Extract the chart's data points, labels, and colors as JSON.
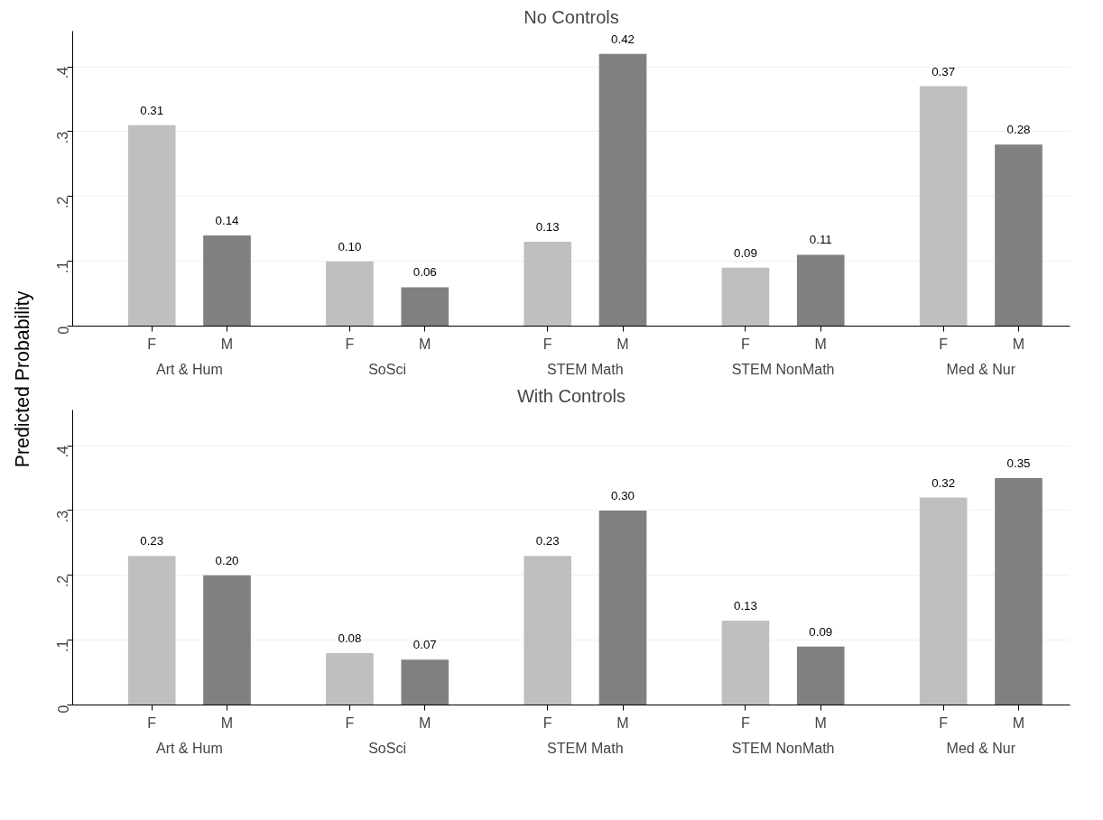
{
  "chart_data": [
    {
      "type": "bar",
      "title": "No Controls",
      "ylabel": "Predicted Probability",
      "categories": [
        "Art & Hum",
        "SoSci",
        "STEM Math",
        "STEM NonMath",
        "Med & Nur"
      ],
      "series": [
        {
          "name": "F",
          "color": "#bfbfbf",
          "values": [
            0.31,
            0.1,
            0.13,
            0.09,
            0.37
          ],
          "value_labels": [
            "0.31",
            "0.10",
            "0.13",
            "0.09",
            "0.37"
          ]
        },
        {
          "name": "M",
          "color": "#808080",
          "values": [
            0.14,
            0.06,
            0.42,
            0.11,
            0.28
          ],
          "value_labels": [
            "0.14",
            "0.06",
            "0.42",
            "0.11",
            "0.28"
          ]
        }
      ],
      "ylim": [
        0,
        0.455
      ],
      "yticks": [
        0,
        {
          "value": 0.1,
          "label": ".1"
        },
        {
          "value": 0.2,
          "label": ".2"
        },
        {
          "value": 0.3,
          "label": ".3"
        },
        {
          "value": 0.4,
          "label": ".4"
        }
      ],
      "grid": "y"
    },
    {
      "type": "bar",
      "title": "With Controls",
      "categories": [
        "Art & Hum",
        "SoSci",
        "STEM Math",
        "STEM NonMath",
        "Med & Nur"
      ],
      "series": [
        {
          "name": "F",
          "color": "#bfbfbf",
          "values": [
            0.23,
            0.08,
            0.23,
            0.13,
            0.32
          ],
          "value_labels": [
            "0.23",
            "0.08",
            "0.23",
            "0.13",
            "0.32"
          ]
        },
        {
          "name": "M",
          "color": "#808080",
          "values": [
            0.2,
            0.07,
            0.3,
            0.09,
            0.35
          ],
          "value_labels": [
            "0.20",
            "0.07",
            "0.30",
            "0.09",
            "0.35"
          ]
        }
      ],
      "ylim": [
        0,
        0.455
      ],
      "yticks": [
        0,
        {
          "value": 0.1,
          "label": ".1"
        },
        {
          "value": 0.2,
          "label": ".2"
        },
        {
          "value": 0.3,
          "label": ".3"
        },
        {
          "value": 0.4,
          "label": ".4"
        }
      ],
      "grid": "y"
    }
  ]
}
